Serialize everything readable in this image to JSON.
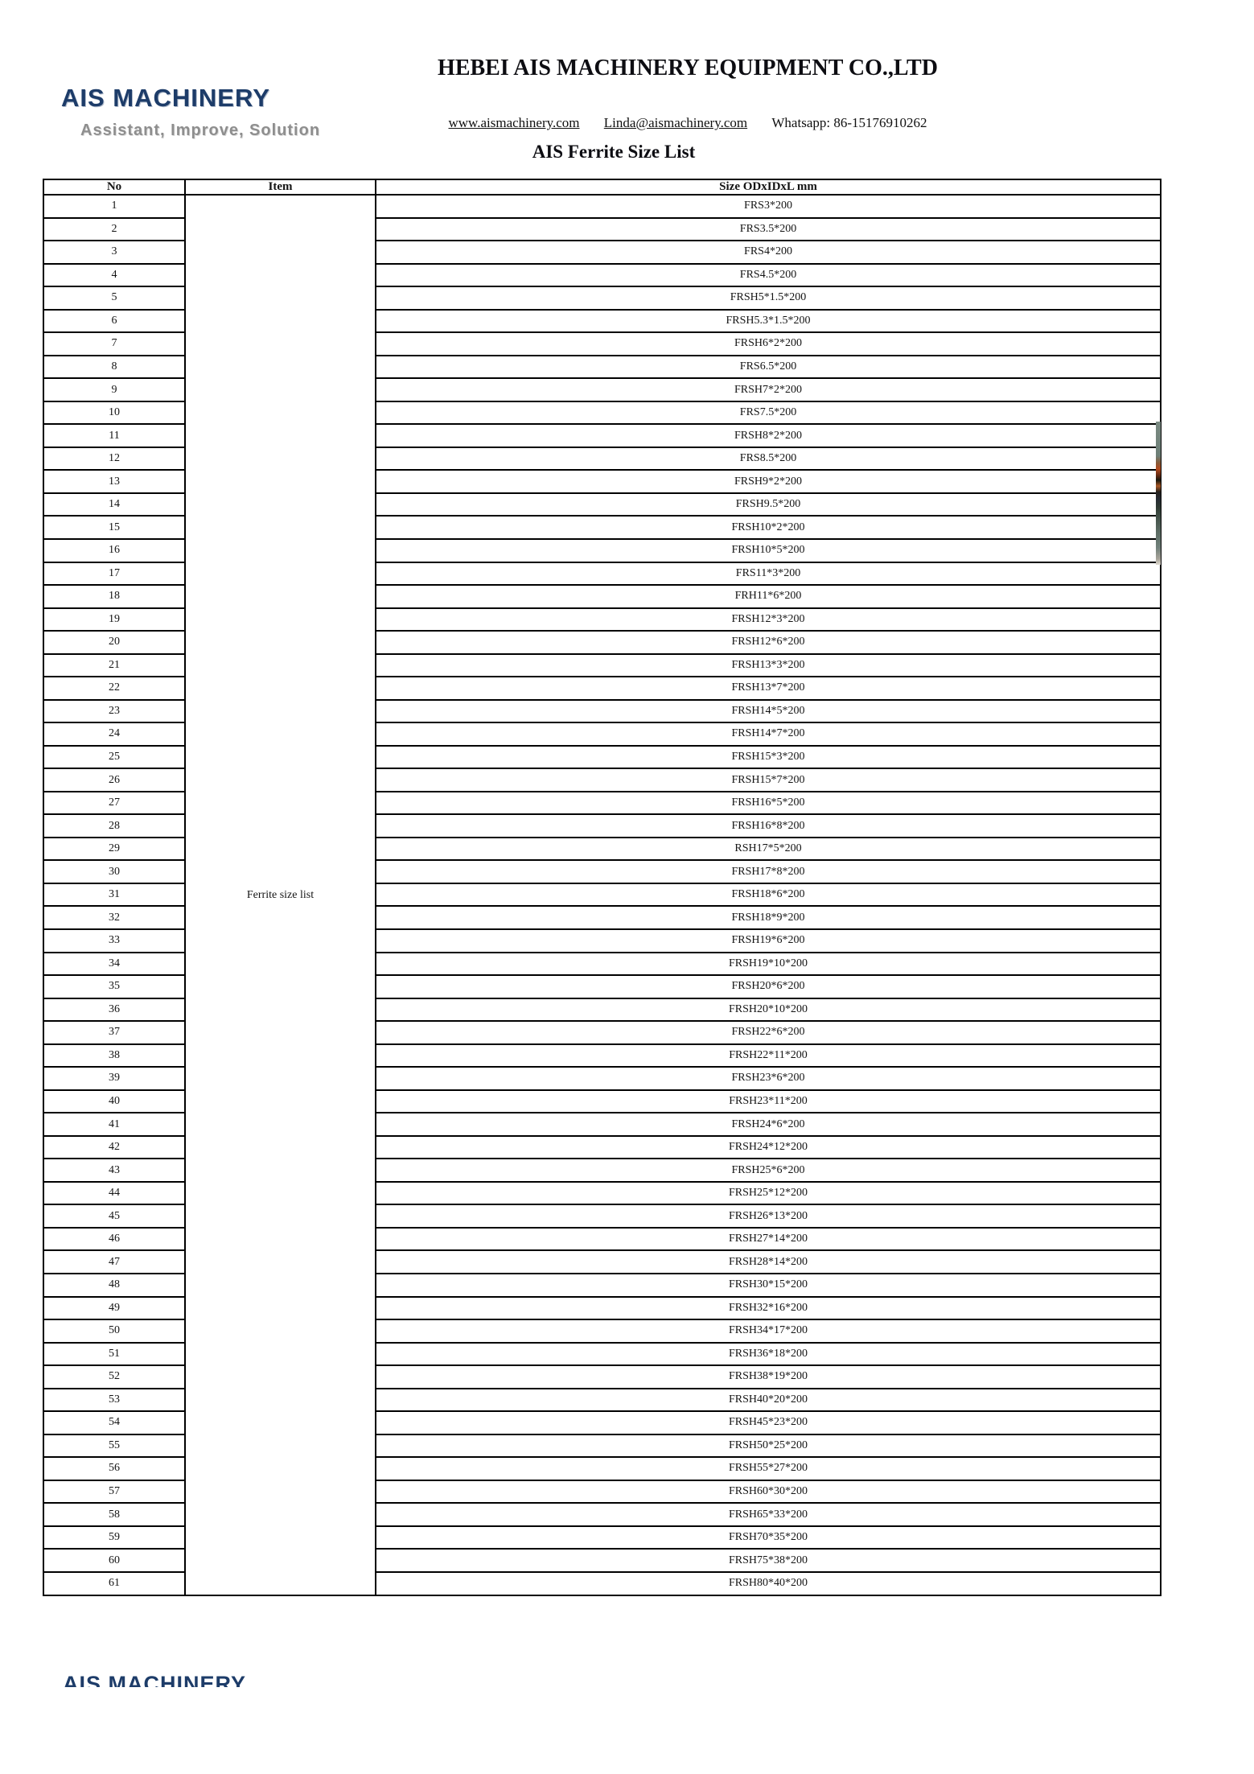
{
  "header": {
    "logo": "AIS MACHINERY",
    "tagline": "Assistant, Improve, Solution",
    "company": "HEBEI AIS MACHINERY EQUIPMENT CO.,LTD",
    "website": "www.aismachinery.com",
    "email": "Linda@aismachinery.com",
    "whatsapp": "Whatsapp: 86-15176910262"
  },
  "document": {
    "title": "AIS Ferrite Size List"
  },
  "table": {
    "columns": [
      "No",
      "Item",
      "Size ODxIDxL mm"
    ],
    "item_label": "Ferrite size list",
    "rows": [
      {
        "no": "1",
        "size": "FRS3*200"
      },
      {
        "no": "2",
        "size": "FRS3.5*200"
      },
      {
        "no": "3",
        "size": "FRS4*200"
      },
      {
        "no": "4",
        "size": "FRS4.5*200"
      },
      {
        "no": "5",
        "size": "FRSH5*1.5*200"
      },
      {
        "no": "6",
        "size": "FRSH5.3*1.5*200"
      },
      {
        "no": "7",
        "size": "FRSH6*2*200"
      },
      {
        "no": "8",
        "size": "FRS6.5*200"
      },
      {
        "no": "9",
        "size": "FRSH7*2*200"
      },
      {
        "no": "10",
        "size": "FRS7.5*200"
      },
      {
        "no": "11",
        "size": "FRSH8*2*200"
      },
      {
        "no": "12",
        "size": "FRS8.5*200"
      },
      {
        "no": "13",
        "size": "FRSH9*2*200"
      },
      {
        "no": "14",
        "size": "FRSH9.5*200"
      },
      {
        "no": "15",
        "size": "FRSH10*2*200"
      },
      {
        "no": "16",
        "size": "FRSH10*5*200"
      },
      {
        "no": "17",
        "size": "FRS11*3*200"
      },
      {
        "no": "18",
        "size": "FRH11*6*200"
      },
      {
        "no": "19",
        "size": "FRSH12*3*200"
      },
      {
        "no": "20",
        "size": "FRSH12*6*200"
      },
      {
        "no": "21",
        "size": "FRSH13*3*200"
      },
      {
        "no": "22",
        "size": "FRSH13*7*200"
      },
      {
        "no": "23",
        "size": "FRSH14*5*200"
      },
      {
        "no": "24",
        "size": "FRSH14*7*200"
      },
      {
        "no": "25",
        "size": "FRSH15*3*200"
      },
      {
        "no": "26",
        "size": "FRSH15*7*200"
      },
      {
        "no": "27",
        "size": "FRSH16*5*200"
      },
      {
        "no": "28",
        "size": "FRSH16*8*200"
      },
      {
        "no": "29",
        "size": "RSH17*5*200"
      },
      {
        "no": "30",
        "size": "FRSH17*8*200"
      },
      {
        "no": "31",
        "size": "FRSH18*6*200"
      },
      {
        "no": "32",
        "size": "FRSH18*9*200"
      },
      {
        "no": "33",
        "size": "FRSH19*6*200"
      },
      {
        "no": "34",
        "size": "FRSH19*10*200"
      },
      {
        "no": "35",
        "size": "FRSH20*6*200"
      },
      {
        "no": "36",
        "size": "FRSH20*10*200"
      },
      {
        "no": "37",
        "size": "FRSH22*6*200"
      },
      {
        "no": "38",
        "size": "FRSH22*11*200"
      },
      {
        "no": "39",
        "size": "FRSH23*6*200"
      },
      {
        "no": "40",
        "size": "FRSH23*11*200"
      },
      {
        "no": "41",
        "size": "FRSH24*6*200"
      },
      {
        "no": "42",
        "size": "FRSH24*12*200"
      },
      {
        "no": "43",
        "size": "FRSH25*6*200"
      },
      {
        "no": "44",
        "size": "FRSH25*12*200"
      },
      {
        "no": "45",
        "size": "FRSH26*13*200"
      },
      {
        "no": "46",
        "size": "FRSH27*14*200"
      },
      {
        "no": "47",
        "size": "FRSH28*14*200"
      },
      {
        "no": "48",
        "size": "FRSH30*15*200"
      },
      {
        "no": "49",
        "size": "FRSH32*16*200"
      },
      {
        "no": "50",
        "size": "FRSH34*17*200"
      },
      {
        "no": "51",
        "size": "FRSH36*18*200"
      },
      {
        "no": "52",
        "size": "FRSH38*19*200"
      },
      {
        "no": "53",
        "size": "FRSH40*20*200"
      },
      {
        "no": "54",
        "size": "FRSH45*23*200"
      },
      {
        "no": "55",
        "size": "FRSH50*25*200"
      },
      {
        "no": "56",
        "size": "FRSH55*27*200"
      },
      {
        "no": "57",
        "size": "FRSH60*30*200"
      },
      {
        "no": "58",
        "size": "FRSH65*33*200"
      },
      {
        "no": "59",
        "size": "FRSH70*35*200"
      },
      {
        "no": "60",
        "size": "FRSH75*38*200"
      },
      {
        "no": "61",
        "size": "FRSH80*40*200"
      }
    ]
  },
  "footer": {
    "partial_logo": "AIS MACHINERY"
  },
  "colors": {
    "logo_blue": "#1d3c69",
    "tagline_gray": "#8e8e8e",
    "text_black": "#0d0d12",
    "table_border": "#000000"
  }
}
